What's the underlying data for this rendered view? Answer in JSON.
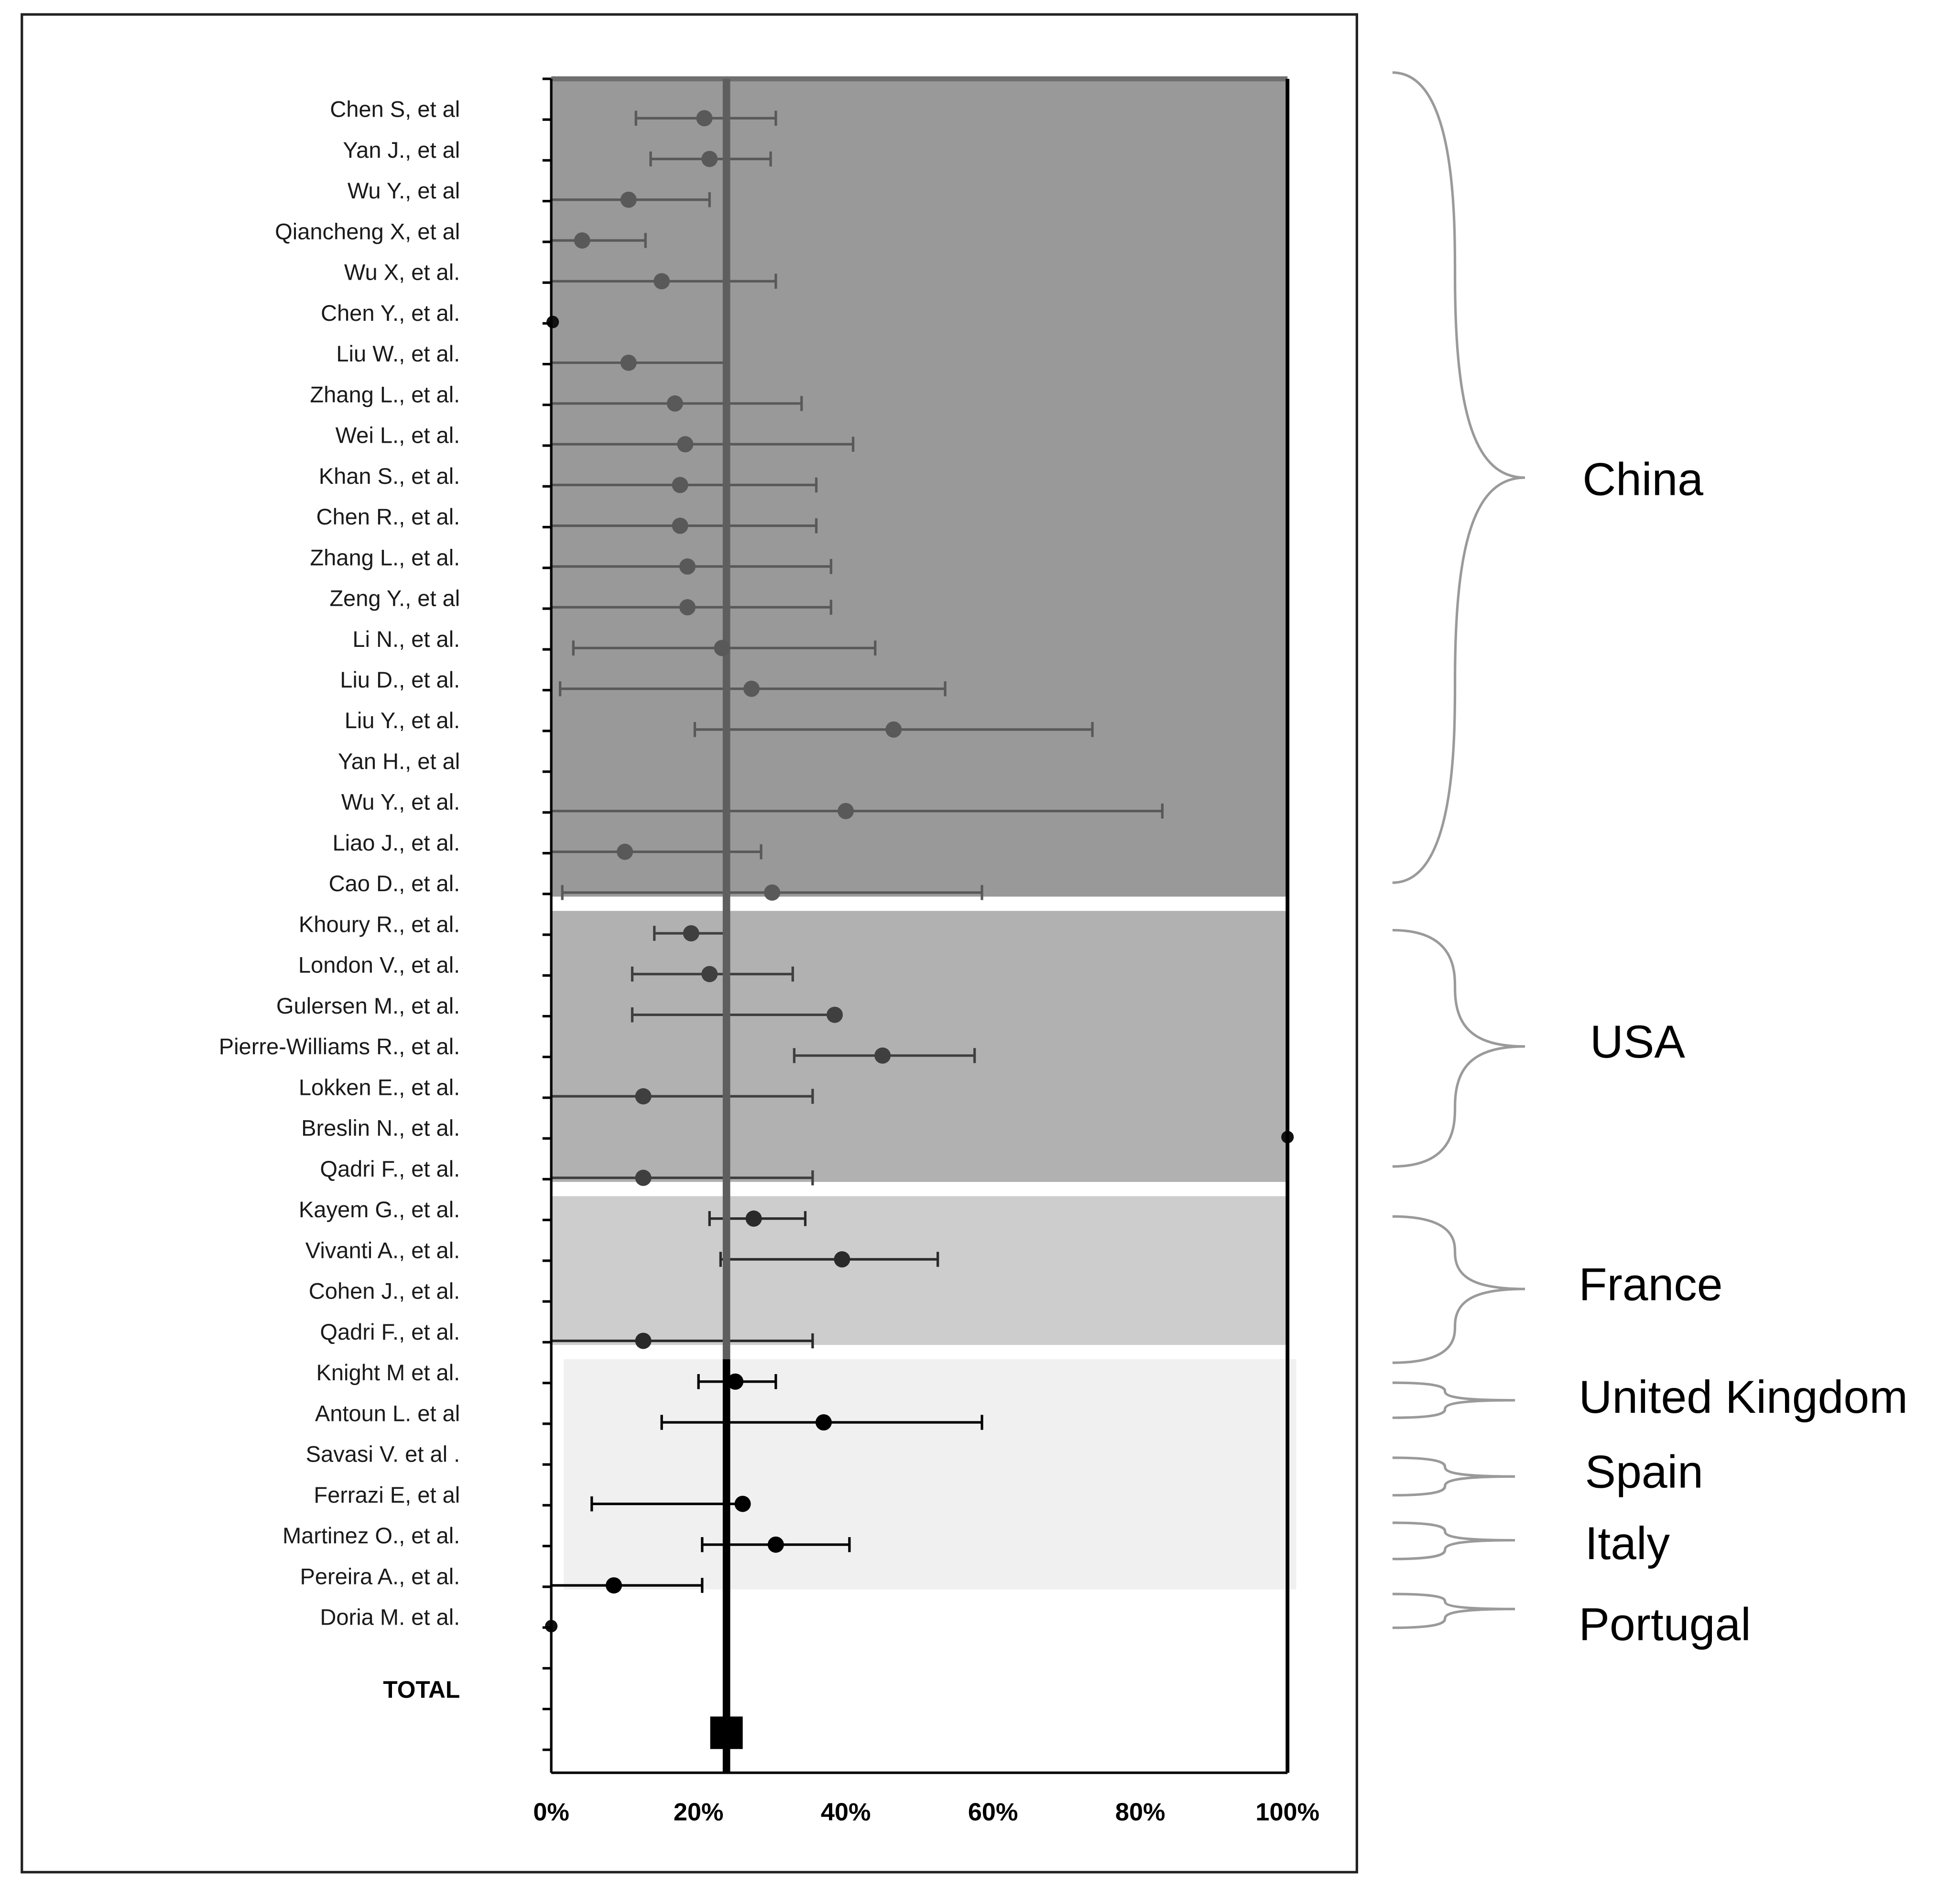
{
  "chart_data": {
    "type": "forest",
    "x_unit": "%",
    "xlim": [
      0,
      100
    ],
    "x_ticks": [
      "0%",
      "20%",
      "40%",
      "60%",
      "80%",
      "100%"
    ],
    "pooled": {
      "label": "TOTAL",
      "estimate": 23.8,
      "ci": [
        22.5,
        25.0
      ]
    },
    "regions": [
      {
        "name": "China",
        "band_color": "#999999"
      },
      {
        "name": "USA",
        "band_color": "#b1b1b1"
      },
      {
        "name": "France",
        "band_color": "#cdcdcd"
      },
      {
        "name": "United Kingdom",
        "band_color": "#f0f0f0"
      },
      {
        "name": "Spain",
        "band_color": "#f0f0f0"
      },
      {
        "name": "Italy",
        "band_color": "#f0f0f0"
      },
      {
        "name": "Portugal",
        "band_color": "#ffffff"
      }
    ],
    "studies": [
      {
        "label": "Chen S, et al",
        "region": "China",
        "estimate": 20.8,
        "ci": [
          11.5,
          30.5
        ]
      },
      {
        "label": "Yan J., et al",
        "region": "China",
        "estimate": 21.5,
        "ci": [
          13.5,
          29.8
        ]
      },
      {
        "label": "Wu Y., et al",
        "region": "China",
        "estimate": 10.5,
        "ci": [
          0,
          21.5
        ]
      },
      {
        "label": "Qiancheng X, et al",
        "region": "China",
        "estimate": 4.2,
        "ci": [
          0,
          12.8
        ]
      },
      {
        "label": "Wu X, et al.",
        "region": "China",
        "estimate": 15.0,
        "ci": [
          0,
          30.5
        ]
      },
      {
        "label": "Chen Y., et al.",
        "region": "China",
        "estimate": 0.2,
        "ci": null
      },
      {
        "label": "Liu W., et al.",
        "region": "China",
        "estimate": 10.5,
        "ci": [
          0,
          23.8
        ]
      },
      {
        "label": "Zhang L., et al.",
        "region": "China",
        "estimate": 16.8,
        "ci": [
          0,
          34.0
        ]
      },
      {
        "label": "Wei L., et al.",
        "region": "China",
        "estimate": 18.2,
        "ci": [
          0,
          41.0
        ]
      },
      {
        "label": "Khan S., et al.",
        "region": "China",
        "estimate": 17.5,
        "ci": [
          0,
          36.0
        ]
      },
      {
        "label": "Chen R., et al.",
        "region": "China",
        "estimate": 17.5,
        "ci": [
          0,
          36.0
        ]
      },
      {
        "label": "Zhang L., et al.",
        "region": "China",
        "estimate": 18.5,
        "ci": [
          0,
          38.0
        ]
      },
      {
        "label": "Zeng Y., et al",
        "region": "China",
        "estimate": 18.5,
        "ci": [
          0,
          38.0
        ]
      },
      {
        "label": "Li N., et al.",
        "region": "China",
        "estimate": 23.2,
        "ci": [
          3.0,
          44.0
        ]
      },
      {
        "label": "Liu D., et al.",
        "region": "China",
        "estimate": 27.2,
        "ci": [
          1.2,
          53.5
        ]
      },
      {
        "label": "Liu Y., et al.",
        "region": "China",
        "estimate": 46.5,
        "ci": [
          19.5,
          73.5
        ]
      },
      {
        "label": "Yan H., et al",
        "region": "China",
        "estimate": null,
        "ci": null
      },
      {
        "label": "Wu Y., et al.",
        "region": "China",
        "estimate": 40.0,
        "ci": [
          0,
          83.0
        ]
      },
      {
        "label": "Liao J., et al.",
        "region": "China",
        "estimate": 10.0,
        "ci": [
          0,
          28.5
        ]
      },
      {
        "label": "Cao D., et al.",
        "region": "China",
        "estimate": 30.0,
        "ci": [
          1.5,
          58.5
        ]
      },
      {
        "label": "Khoury R., et al.",
        "region": "USA",
        "estimate": 19.0,
        "ci": [
          14.0,
          23.8
        ]
      },
      {
        "label": "London V., et al.",
        "region": "USA",
        "estimate": 21.5,
        "ci": [
          11.0,
          32.8
        ]
      },
      {
        "label": "Gulersen M., et al.",
        "region": "USA",
        "estimate": 38.5,
        "ci": [
          11.0,
          38.5
        ]
      },
      {
        "label": "Pierre-Williams R., et al.",
        "region": "USA",
        "estimate": 45.0,
        "ci": [
          33.0,
          57.5
        ]
      },
      {
        "label": "Lokken E., et al.",
        "region": "USA",
        "estimate": 12.5,
        "ci": [
          0,
          35.5
        ]
      },
      {
        "label": "Breslin N., et al.",
        "region": "USA",
        "estimate": 100.0,
        "ci": null
      },
      {
        "label": "Qadri F., et al.",
        "region": "USA",
        "estimate": 12.5,
        "ci": [
          0,
          35.5
        ]
      },
      {
        "label": "Kayem G., et al.",
        "region": "France",
        "estimate": 27.5,
        "ci": [
          21.5,
          34.5
        ]
      },
      {
        "label": "Vivanti A., et al.",
        "region": "France",
        "estimate": 39.5,
        "ci": [
          23.0,
          52.5
        ]
      },
      {
        "label": "Cohen J., et al.",
        "region": "France",
        "estimate": null,
        "ci": null
      },
      {
        "label": "Qadri F., et al.",
        "region": "France",
        "estimate": 12.5,
        "ci": [
          0,
          35.5
        ]
      },
      {
        "label": "Knight M et al.",
        "region": "United Kingdom",
        "estimate": 25.0,
        "ci": [
          20.0,
          30.5
        ]
      },
      {
        "label": "Antoun L. et al",
        "region": "United Kingdom",
        "estimate": 37.0,
        "ci": [
          15.0,
          58.5
        ]
      },
      {
        "label": "Savasi V. et al .",
        "region": "Spain",
        "estimate": null,
        "ci": null
      },
      {
        "label": "Ferrazi E, et al",
        "region": "Spain",
        "estimate": 26.0,
        "ci": [
          5.5,
          26.0
        ]
      },
      {
        "label": "Martinez O., et al.",
        "region": "Italy",
        "estimate": 30.5,
        "ci": [
          20.5,
          40.5
        ]
      },
      {
        "label": "Pereira A., et al.",
        "region": "Italy",
        "estimate": 8.5,
        "ci": [
          0,
          20.5
        ]
      },
      {
        "label": "Doria M. et al.",
        "region": "Portugal",
        "estimate": 0.0,
        "ci": null
      }
    ]
  }
}
